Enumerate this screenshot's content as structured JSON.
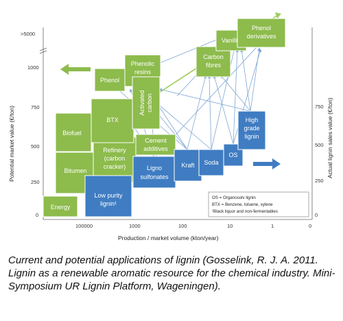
{
  "axes": {
    "y_left_title": "Potential market value (€/ton)",
    "y_right_title": "Actual lignin sales value (€/ton)",
    "x_title": "Production / market volume (kton/year)",
    "y_left_ticks": [
      ">5000",
      "1000",
      "750",
      "500",
      "250",
      "0"
    ],
    "y_right_ticks": [
      "750",
      "500",
      "250",
      "0"
    ],
    "x_ticks": [
      "100000",
      "1000",
      "100",
      "10",
      "1",
      "0"
    ]
  },
  "green_boxes": {
    "energy": "Energy",
    "bitumen": "Bitumen",
    "biofuel": "Biofuel",
    "refinery": [
      "Refinery",
      "(carbon",
      "cracker)"
    ],
    "btx": "BTX",
    "phenol": "Phenol",
    "phenolic_resins": [
      "Phenolic",
      "resins"
    ],
    "activated_carbon": [
      "Activated",
      "carbon"
    ],
    "cement_additives": [
      "Cement",
      "additives"
    ],
    "carbon_fibres": [
      "Carbon",
      "fibres"
    ],
    "vanillin": "Vanillin",
    "phenol_derivatives": [
      "Phenol",
      "derivatives"
    ]
  },
  "blue_boxes": {
    "low_purity": [
      "Low purity",
      "lignin¹"
    ],
    "lignosulfonates": [
      "Ligno",
      "sulfonates"
    ],
    "kraft": "Kraft",
    "soda": "Soda",
    "os": "OS",
    "high_grade": [
      "High",
      "grade",
      "lignin"
    ]
  },
  "legend": [
    "OS = Organosolv lignin",
    "BTX = Benzene, toluene, xylene",
    "¹Black liquor and non-fermentables"
  ],
  "colors": {
    "application": "#8dbb4c",
    "lignin_source": "#3f7cc2",
    "link": "#7ea6d4"
  },
  "caption": "Current and potential applications of lignin (Gosselink, R. J. A. 2011. Lignin as a renewable aromatic resource for the chemical industry. Mini-Symposium UR Lignin Platform, Wageningen)."
}
